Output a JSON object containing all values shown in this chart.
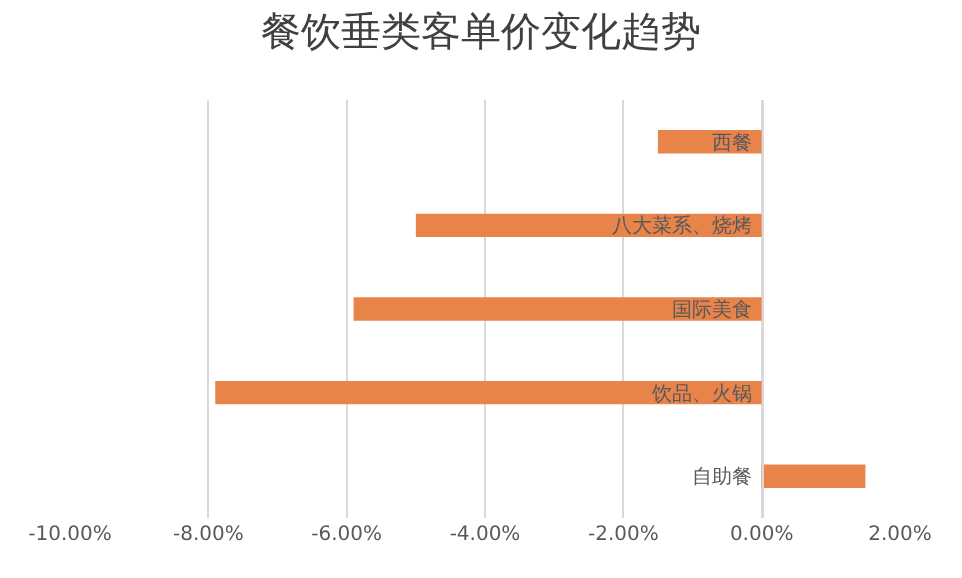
{
  "chart_data": {
    "type": "bar",
    "orientation": "horizontal",
    "title": "餐饮垂类客单价变化趋势",
    "categories": [
      "西餐",
      "八大菜系、烧烤",
      "国际美食",
      "饮品、火锅",
      "自助餐"
    ],
    "values": [
      -1.5,
      -5.0,
      -5.9,
      -7.9,
      1.5
    ],
    "color": "#e8834a",
    "xlim": [
      -10,
      2
    ],
    "xticks": [
      {
        "value": -10,
        "label": "-10.00%"
      },
      {
        "value": -8,
        "label": "-8.00%"
      },
      {
        "value": -6,
        "label": "-6.00%"
      },
      {
        "value": -4,
        "label": "-4.00%"
      },
      {
        "value": -2,
        "label": "-2.00%"
      },
      {
        "value": 0,
        "label": "0.00%"
      },
      {
        "value": 2,
        "label": "2.00%"
      }
    ],
    "grid": "x"
  }
}
